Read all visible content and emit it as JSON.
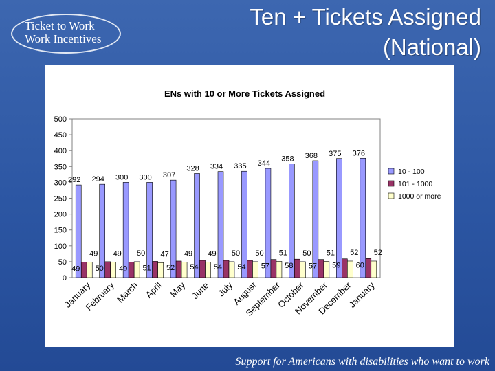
{
  "header": {
    "logo_line1": "Ticket to Work",
    "logo_line2": "Work Incentives",
    "title_line1": "Ten + Tickets Assigned",
    "title_line2": "(National)"
  },
  "footer": {
    "tagline": "Support for Americans with disabilities who want to work"
  },
  "colors": {
    "background": "#2c56a3",
    "series_10_100": "#9999ff",
    "series_101_1000": "#993366",
    "series_1000_more": "#ffffcc"
  },
  "chart_data": {
    "type": "bar",
    "title": "ENs with 10 or More Tickets Assigned",
    "xlabel": "",
    "ylabel": "",
    "ylim": [
      0,
      500
    ],
    "yticks": [
      0,
      50,
      100,
      150,
      200,
      250,
      300,
      350,
      400,
      450,
      500
    ],
    "grid": false,
    "legend_position": "right",
    "categories": [
      "January",
      "February",
      "March",
      "April",
      "May",
      "June",
      "July",
      "August",
      "September",
      "October",
      "November",
      "December",
      "January"
    ],
    "series": [
      {
        "name": "10 - 100",
        "color": "#9999ff",
        "values": [
          292,
          294,
          300,
          300,
          307,
          328,
          334,
          335,
          344,
          358,
          368,
          375,
          376
        ]
      },
      {
        "name": "101 - 1000",
        "color": "#993366",
        "values": [
          49,
          50,
          49,
          51,
          52,
          54,
          54,
          54,
          57,
          58,
          57,
          59,
          60
        ]
      },
      {
        "name": "1000 or more",
        "color": "#ffffcc",
        "values": [
          49,
          49,
          50,
          47,
          49,
          49,
          50,
          50,
          51,
          50,
          51,
          52,
          52
        ]
      }
    ]
  }
}
